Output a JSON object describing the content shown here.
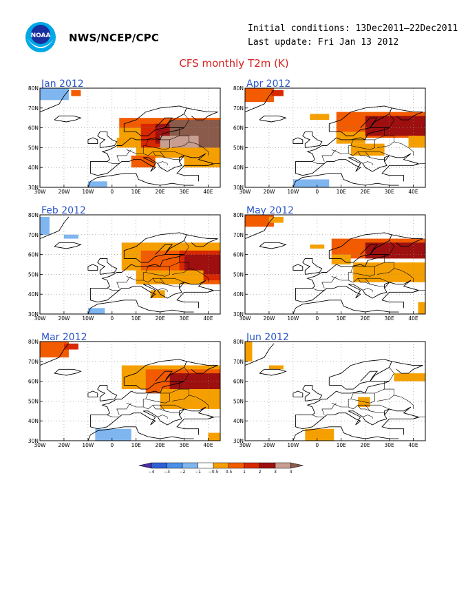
{
  "header": {
    "agency": "NWS/NCEP/CPC",
    "initial_conditions": "Initial conditions: 13Dec2011–22Dec2011",
    "last_update": "Last update: Fri Jan 13 2012",
    "title": "CFS monthly T2m (K)"
  },
  "logo": {
    "text": "NOAA"
  },
  "map_axes": {
    "lat_labels": [
      "80N",
      "70N",
      "60N",
      "50N",
      "40N",
      "30N"
    ],
    "lon_labels": [
      "30W",
      "20W",
      "10W",
      "0",
      "10E",
      "20E",
      "30E",
      "40E"
    ]
  },
  "panels": [
    {
      "month": "Jan 2012"
    },
    {
      "month": "Apr 2012"
    },
    {
      "month": "Feb 2012"
    },
    {
      "month": "May 2012"
    },
    {
      "month": "Mar 2012"
    },
    {
      "month": "Jun 2012"
    }
  ],
  "colorbar": {
    "labels": [
      "−4",
      "−3",
      "−2",
      "−1",
      "−0.5",
      "0.5",
      "1",
      "2",
      "3",
      "4"
    ],
    "colors": [
      "#4b2ea8",
      "#2e5fd4",
      "#4a90e8",
      "#7fb6f0",
      "#ffffff",
      "#f5a000",
      "#f25b00",
      "#d82800",
      "#9e1010",
      "#c89e90",
      "#8a5a4a"
    ]
  },
  "colors": {
    "orange": "#f5a000",
    "red_orange": "#f25b00",
    "red": "#d82800",
    "dark_red": "#9e1010",
    "pink_brown": "#c89e90",
    "brown": "#8a5a4a",
    "light_blue": "#7fb6f0"
  }
}
